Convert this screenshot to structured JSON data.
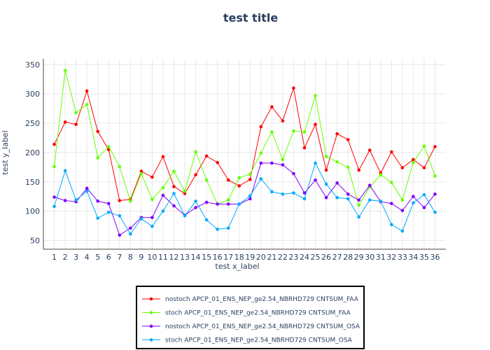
{
  "chart_data": {
    "type": "line",
    "title": "test title",
    "xlabel": "test x_label",
    "ylabel": "test y_label",
    "x": [
      1,
      2,
      3,
      4,
      5,
      6,
      7,
      8,
      9,
      10,
      11,
      12,
      13,
      14,
      15,
      16,
      17,
      18,
      19,
      20,
      21,
      22,
      23,
      24,
      25,
      26,
      27,
      28,
      29,
      30,
      31,
      32,
      33,
      34,
      35,
      36
    ],
    "ylim": [
      35,
      360
    ],
    "yticks": [
      50,
      100,
      150,
      200,
      250,
      300,
      350
    ],
    "grid": true,
    "legend_position": "bottom",
    "series": [
      {
        "name": "nostoch APCP_01_ENS_NEP_ge2.54_NBRHD729 CNTSUM_FAA",
        "color": "#ff0000",
        "values": [
          214,
          252,
          248,
          305,
          236,
          205,
          118,
          120,
          168,
          158,
          193,
          142,
          130,
          162,
          194,
          183,
          153,
          143,
          154,
          244,
          278,
          254,
          310,
          208,
          248,
          170,
          232,
          222,
          170,
          204,
          165,
          201,
          174,
          188,
          174,
          210
        ]
      },
      {
        "name": "stoch APCP_01_ENS_NEP_ge2.54_NBRHD729 CNTSUM_FAA",
        "color": "#66ff00",
        "values": [
          176,
          340,
          268,
          282,
          191,
          210,
          176,
          117,
          164,
          120,
          140,
          168,
          134,
          201,
          153,
          112,
          119,
          157,
          163,
          199,
          235,
          188,
          237,
          235,
          297,
          193,
          184,
          175,
          110,
          141,
          162,
          149,
          119,
          183,
          211,
          160
        ]
      },
      {
        "name": "nostoch APCP_01_ENS_NEP_ge2.54_NBRHD729 CNTSUM_OSA",
        "color": "#8000ff",
        "values": [
          124,
          118,
          116,
          139,
          117,
          113,
          59,
          71,
          89,
          89,
          127,
          109,
          93,
          106,
          115,
          112,
          112,
          112,
          121,
          182,
          182,
          179,
          164,
          131,
          153,
          123,
          148,
          129,
          119,
          144,
          116,
          113,
          101,
          125,
          106,
          129
        ]
      },
      {
        "name": "stoch APCP_01_ENS_NEP_ge2.54_NBRHD729 CNTSUM_OSA",
        "color": "#00aaff",
        "values": [
          108,
          169,
          119,
          134,
          88,
          98,
          92,
          61,
          87,
          74,
          100,
          130,
          92,
          117,
          85,
          69,
          71,
          112,
          126,
          155,
          133,
          129,
          131,
          121,
          182,
          146,
          123,
          121,
          90,
          119,
          117,
          77,
          66,
          114,
          128,
          98
        ]
      }
    ]
  }
}
